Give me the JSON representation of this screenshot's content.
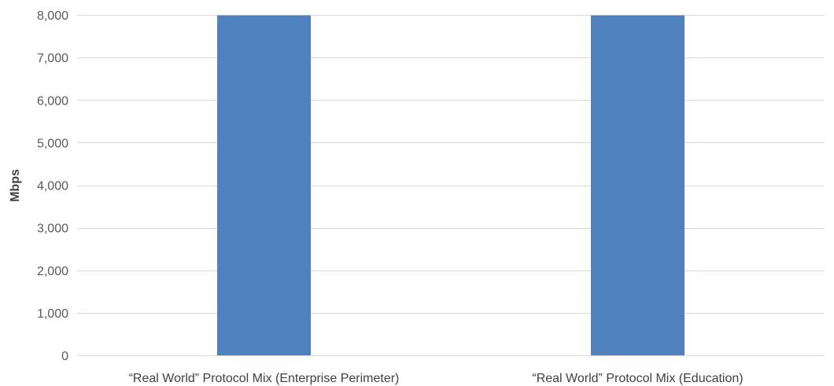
{
  "chart_data": {
    "type": "bar",
    "categories": [
      "“Real World” Protocol Mix (Enterprise Perimeter)",
      "“Real World” Protocol Mix (Education)"
    ],
    "series": [
      {
        "values": [
          7990,
          7990
        ],
        "color": "#4f81bd"
      }
    ],
    "title": "",
    "xlabel": "",
    "ylabel": "Mbps",
    "ylim": [
      0,
      8000
    ],
    "yticks": [
      0,
      1000,
      2000,
      3000,
      4000,
      5000,
      6000,
      7000,
      8000
    ],
    "ytick_labels": [
      "0",
      "1,000",
      "2,000",
      "3,000",
      "4,000",
      "5,000",
      "6,000",
      "7,000",
      "8,000"
    ],
    "grid": true,
    "legend": "none",
    "colors": {
      "gridline": "#d9d9d9",
      "baseline": "#d9d9d9"
    }
  }
}
